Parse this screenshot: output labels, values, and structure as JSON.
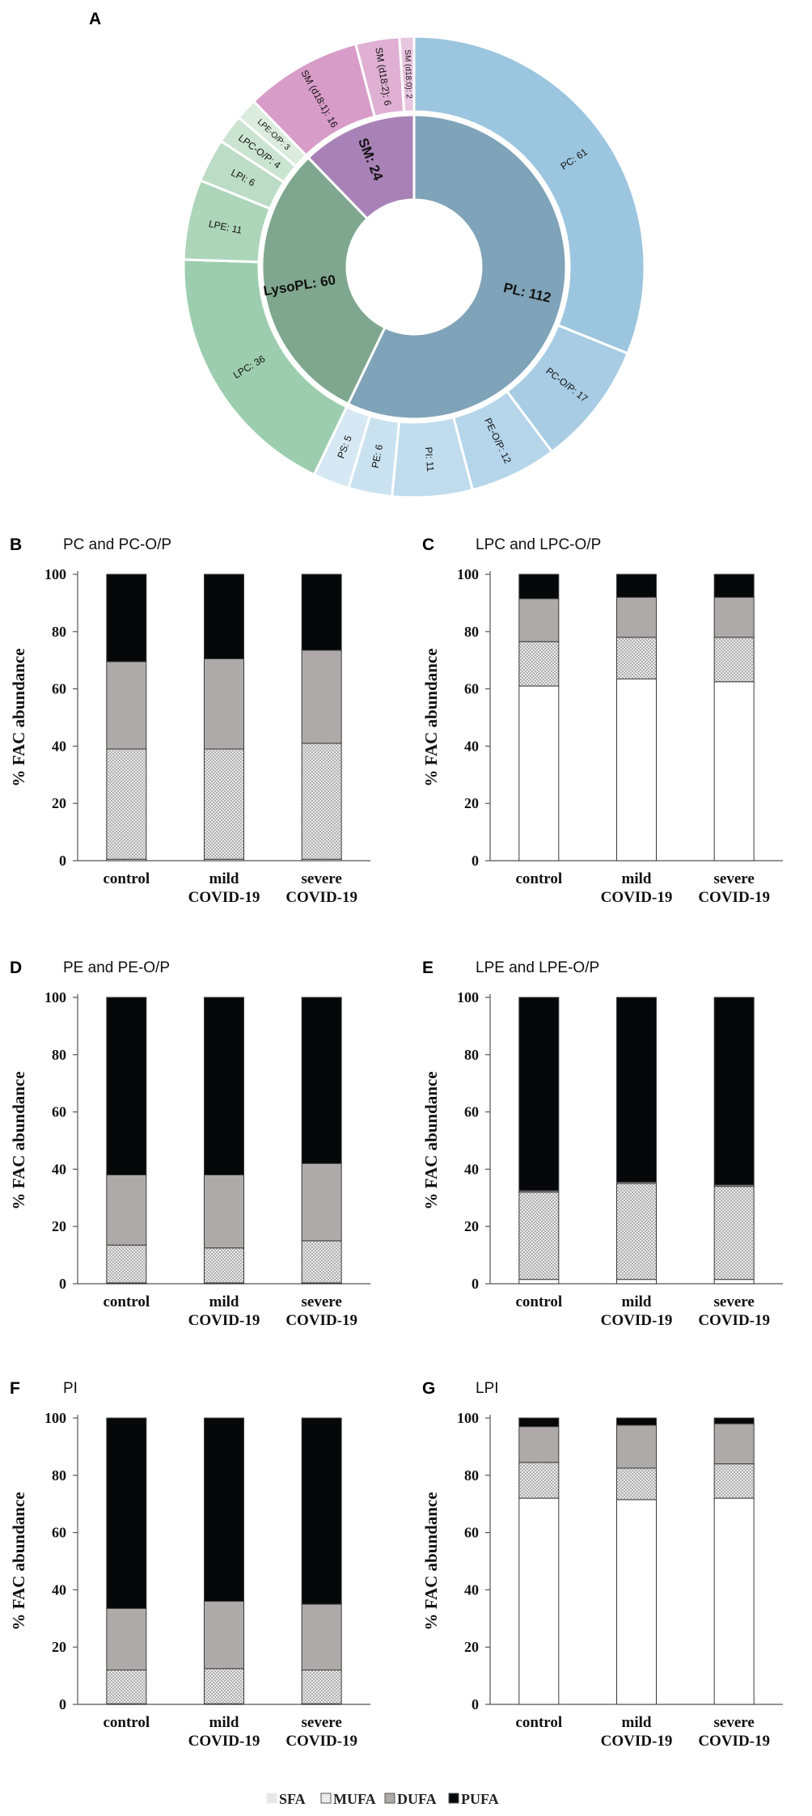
{
  "chart_data": [
    {
      "panel": "A",
      "type": "pie",
      "subtype": "sunburst",
      "inner_ring": [
        {
          "name": "PL",
          "label": "PL: 112",
          "value": 112,
          "color": "#7fa3b8"
        },
        {
          "name": "LysoPL",
          "label": "LysoPL: 60",
          "value": 60,
          "color": "#7fa78f"
        },
        {
          "name": "SM",
          "label": "SM: 24",
          "value": 24,
          "color": "#a882b6"
        }
      ],
      "outer_ring": [
        {
          "name": "PC",
          "label": "PC: 61",
          "value": 61,
          "parent": "PL",
          "color": "#9cc5df"
        },
        {
          "name": "PC-O/P",
          "label": "PC-O/P: 17",
          "value": 17,
          "parent": "PL",
          "color": "#a7cce4"
        },
        {
          "name": "PE-O/P",
          "label": "PE-O/P: 12",
          "value": 12,
          "parent": "PL",
          "color": "#b5d5ea"
        },
        {
          "name": "PI",
          "label": "PI: 11",
          "value": 11,
          "parent": "PL",
          "color": "#c0dced"
        },
        {
          "name": "PE",
          "label": "PE: 6",
          "value": 6,
          "parent": "PL",
          "color": "#cae2f0"
        },
        {
          "name": "PS",
          "label": "PS: 5",
          "value": 5,
          "parent": "PL",
          "color": "#d6e8f3"
        },
        {
          "name": "LPC",
          "label": "LPC: 36",
          "value": 36,
          "parent": "LysoPL",
          "color": "#9ccdae"
        },
        {
          "name": "LPE",
          "label": "LPE: 11",
          "value": 11,
          "parent": "LysoPL",
          "color": "#acd5b9"
        },
        {
          "name": "LPI",
          "label": "LPI: 6",
          "value": 6,
          "parent": "LysoPL",
          "color": "#bcdcc5"
        },
        {
          "name": "LPC-O/P",
          "label": "LPC-O/P: 4",
          "value": 4,
          "parent": "LysoPL",
          "color": "#cbe4d1"
        },
        {
          "name": "LPE-O/P",
          "label": "LPE-O/P: 3",
          "value": 3,
          "parent": "LysoPL",
          "color": "#dbecdf"
        },
        {
          "name": "SM (d18:1)",
          "label": "SM (d18:1): 16",
          "value": 16,
          "parent": "SM",
          "color": "#d89cc8"
        },
        {
          "name": "SM (d18:2)",
          "label": "SM (d18:2): 6",
          "value": 6,
          "parent": "SM",
          "color": "#e0b0d4"
        },
        {
          "name": "SM (d18:0)",
          "label": "SM (d18:0): 2",
          "value": 2,
          "parent": "SM",
          "color": "#e9c6e0"
        }
      ]
    },
    {
      "panel": "B",
      "type": "bar",
      "stacked": true,
      "title": "PC and PC-O/P",
      "ylabel": "% FAC abundance",
      "ylim": [
        0,
        100
      ],
      "yticks": [
        0,
        20,
        40,
        60,
        80,
        100
      ],
      "categories": [
        [
          "control"
        ],
        [
          "mild",
          "COVID-19"
        ],
        [
          "severe",
          "COVID-19"
        ]
      ],
      "series": [
        {
          "name": "SFA",
          "values": [
            0.5,
            0.5,
            0.5
          ]
        },
        {
          "name": "MUFA",
          "values": [
            38.5,
            38.5,
            40.5
          ]
        },
        {
          "name": "DUFA",
          "values": [
            30.5,
            31.5,
            32.5
          ]
        },
        {
          "name": "PUFA",
          "values": [
            30.5,
            29.5,
            26.5
          ]
        }
      ]
    },
    {
      "panel": "C",
      "type": "bar",
      "stacked": true,
      "title": "LPC and LPC-O/P",
      "ylabel": "% FAC abundance",
      "ylim": [
        0,
        100
      ],
      "yticks": [
        0,
        20,
        40,
        60,
        80,
        100
      ],
      "categories": [
        [
          "control"
        ],
        [
          "mild",
          "COVID-19"
        ],
        [
          "severe",
          "COVID-19"
        ]
      ],
      "series": [
        {
          "name": "SFA",
          "values": [
            61,
            63.5,
            62.5
          ]
        },
        {
          "name": "MUFA",
          "values": [
            15.5,
            14.5,
            15.5
          ]
        },
        {
          "name": "DUFA",
          "values": [
            15,
            14,
            14
          ]
        },
        {
          "name": "PUFA",
          "values": [
            8.5,
            8,
            8
          ]
        }
      ]
    },
    {
      "panel": "D",
      "type": "bar",
      "stacked": true,
      "title": "PE and PE-O/P",
      "ylabel": "% FAC abundance",
      "ylim": [
        0,
        100
      ],
      "yticks": [
        0,
        20,
        40,
        60,
        80,
        100
      ],
      "categories": [
        [
          "control"
        ],
        [
          "mild",
          "COVID-19"
        ],
        [
          "severe",
          "COVID-19"
        ]
      ],
      "series": [
        {
          "name": "SFA",
          "values": [
            0.3,
            0.3,
            0.3
          ]
        },
        {
          "name": "MUFA",
          "values": [
            13.2,
            12.2,
            14.7
          ]
        },
        {
          "name": "DUFA",
          "values": [
            24.5,
            25.5,
            27
          ]
        },
        {
          "name": "PUFA",
          "values": [
            62,
            62,
            58
          ]
        }
      ]
    },
    {
      "panel": "E",
      "type": "bar",
      "stacked": true,
      "title": "LPE and LPE-O/P",
      "ylabel": "% FAC abundance",
      "ylim": [
        0,
        100
      ],
      "yticks": [
        0,
        20,
        40,
        60,
        80,
        100
      ],
      "categories": [
        [
          "control"
        ],
        [
          "mild",
          "COVID-19"
        ],
        [
          "severe",
          "COVID-19"
        ]
      ],
      "series": [
        {
          "name": "SFA",
          "values": [
            1.5,
            1.5,
            1.5
          ]
        },
        {
          "name": "MUFA",
          "values": [
            30.5,
            33.5,
            32.5
          ]
        },
        {
          "name": "DUFA",
          "values": [
            0.5,
            0.5,
            0.5
          ]
        },
        {
          "name": "PUFA",
          "values": [
            67.5,
            64.5,
            65.5
          ]
        }
      ]
    },
    {
      "panel": "F",
      "type": "bar",
      "stacked": true,
      "title": "PI",
      "ylabel": "% FAC abundance",
      "ylim": [
        0,
        100
      ],
      "yticks": [
        0,
        20,
        40,
        60,
        80,
        100
      ],
      "categories": [
        [
          "control"
        ],
        [
          "mild",
          "COVID-19"
        ],
        [
          "severe",
          "COVID-19"
        ]
      ],
      "series": [
        {
          "name": "SFA",
          "values": [
            0.2,
            0.2,
            0.2
          ]
        },
        {
          "name": "MUFA",
          "values": [
            11.8,
            12.3,
            11.8
          ]
        },
        {
          "name": "DUFA",
          "values": [
            21.5,
            23.5,
            23
          ]
        },
        {
          "name": "PUFA",
          "values": [
            66.5,
            64,
            65
          ]
        }
      ]
    },
    {
      "panel": "G",
      "type": "bar",
      "stacked": true,
      "title": "LPI",
      "ylabel": "% FAC abundance",
      "ylim": [
        0,
        100
      ],
      "yticks": [
        0,
        20,
        40,
        60,
        80,
        100
      ],
      "categories": [
        [
          "control"
        ],
        [
          "mild",
          "COVID-19"
        ],
        [
          "severe",
          "COVID-19"
        ]
      ],
      "series": [
        {
          "name": "SFA",
          "values": [
            72,
            71.5,
            72
          ]
        },
        {
          "name": "MUFA",
          "values": [
            12.5,
            11,
            12
          ]
        },
        {
          "name": "DUFA",
          "values": [
            12.5,
            15,
            14
          ]
        },
        {
          "name": "PUFA",
          "values": [
            3,
            2.5,
            2
          ]
        }
      ]
    }
  ],
  "legend": [
    {
      "name": "SFA",
      "label": "SFA",
      "color": "#ffffff"
    },
    {
      "name": "MUFA",
      "label": "MUFA",
      "color": "#ececec"
    },
    {
      "name": "DUFA",
      "label": "DUFA",
      "color": "#aeaaaa"
    },
    {
      "name": "PUFA",
      "label": "PUFA",
      "color": "#050708"
    }
  ],
  "colors": {
    "sfa": "#ffffff",
    "mufa_hatch": "#e4e4e4",
    "dufa": "#aeaaaa",
    "pufa": "#050708",
    "axis": "#555555"
  }
}
